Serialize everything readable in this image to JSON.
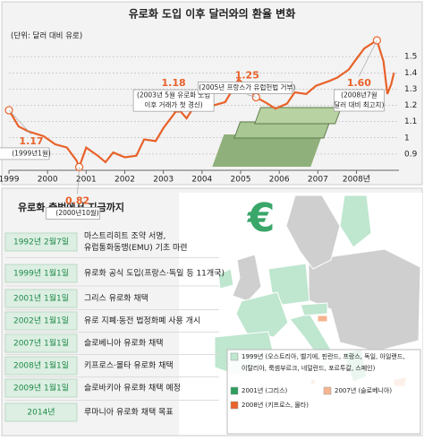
{
  "chart_data": {
    "type": "line",
    "title": "유로화 도입 이후 달러와의 환율 변화",
    "subtitle": "(단위: 달러 대비 유로)",
    "x": [
      1999.0,
      1999.25,
      1999.5,
      1999.9,
      2000.2,
      2000.5,
      2000.75,
      2000.82,
      2001.0,
      2001.3,
      2001.5,
      2001.7,
      2002.0,
      2002.3,
      2002.5,
      2002.8,
      2003.0,
      2003.38,
      2003.6,
      2003.9,
      2004.1,
      2004.3,
      2004.6,
      2004.95,
      2005.25,
      2005.4,
      2005.7,
      2005.9,
      2006.2,
      2006.4,
      2006.7,
      2006.95,
      2007.3,
      2007.5,
      2007.8,
      2007.95,
      2008.2,
      2008.53,
      2008.7,
      2008.8,
      2008.9,
      2008.97
    ],
    "series": [
      {
        "color": "#e8622a",
        "values": [
          1.17,
          1.07,
          1.04,
          1.01,
          0.96,
          0.94,
          0.86,
          0.82,
          0.94,
          0.89,
          0.85,
          0.91,
          0.88,
          0.89,
          0.99,
          0.98,
          1.06,
          1.18,
          1.12,
          1.23,
          1.25,
          1.2,
          1.22,
          1.36,
          1.29,
          1.25,
          1.21,
          1.18,
          1.21,
          1.28,
          1.27,
          1.32,
          1.35,
          1.37,
          1.42,
          1.47,
          1.55,
          1.6,
          1.47,
          1.27,
          1.33,
          1.4
        ]
      }
    ],
    "annotations": [
      {
        "x": 1999.0,
        "value": 1.17,
        "label": "1.17",
        "note": [
          "(1999년1월)"
        ]
      },
      {
        "x": 2000.82,
        "value": 0.82,
        "label": "0.82",
        "note": [
          "(2000년10월)"
        ]
      },
      {
        "x": 2003.38,
        "value": 1.18,
        "label": "1.18",
        "note": [
          "(2003년 5월 유로화 도입",
          "이후 거래가 첫 경신)"
        ]
      },
      {
        "x": 2005.4,
        "value": 1.25,
        "label": "1.25",
        "note": [
          "(2005년 프랑스가 유럽헌법 거부)"
        ]
      },
      {
        "x": 2008.53,
        "value": 1.6,
        "label": "1.60",
        "note": [
          "(2008년7월",
          "달러 대비 최고치)"
        ]
      }
    ],
    "xlim": [
      1999,
      2009.1
    ],
    "ylim": [
      0.8,
      1.6
    ],
    "xticks": [
      1999,
      2000,
      2001,
      2002,
      2003,
      2004,
      2005,
      2006,
      2007,
      {
        "value": 2008,
        "label": "2008년"
      }
    ],
    "yticks": [
      1.5,
      1.4,
      1.3,
      1.2,
      1.1,
      1,
      0.9
    ],
    "grid": true
  },
  "timeline": {
    "title": "유로화 출범에서 지금까지",
    "items": [
      {
        "date": "1992년 2월7일",
        "text": [
          "마스트리히트 조약 서명,",
          "유럽통화동맹(EMU) 기초 마련"
        ]
      },
      {
        "date": "1999년 1월1일",
        "text": [
          "유로화 공식 도입(프랑스·독일 등 11개국)"
        ]
      },
      {
        "date": "2001년 1월1일",
        "text": [
          "그리스 유로화 채택"
        ]
      },
      {
        "date": "2002년 1월1일",
        "text": [
          "유로 지폐·동전 법정화폐 사용 개시"
        ]
      },
      {
        "date": "2007년 1월1일",
        "text": [
          "슬로베니아 유로화 채택"
        ]
      },
      {
        "date": "2008년 1월1일",
        "text": [
          "키프로스·몰타 유로화 채택"
        ]
      },
      {
        "date": "2009년 1월1일",
        "text": [
          "슬로바키아 유로화 채택 예정"
        ]
      },
      {
        "date": "2014년",
        "text": [
          "루마니아 유로화 채택 목표"
        ]
      }
    ]
  },
  "map": {
    "legend": [
      {
        "text": [
          "1999년 (오스트리아, 벨기에, 핀란드, 프랑스, 독일, 아일랜드,",
          "이탈리아, 룩셈부르크, 네덜란드, 포르투갈, 스페인)"
        ],
        "color": "#bfe6cf"
      },
      {
        "text": [
          "2001년 (그리스)"
        ],
        "color": "#2e9e5e"
      },
      {
        "text": [
          "2007년 (슬로베니아)"
        ],
        "color": "#f6b48f"
      },
      {
        "text": [
          "2008년 (키프로스, 몰타)"
        ],
        "color": "#e8632a"
      }
    ]
  }
}
